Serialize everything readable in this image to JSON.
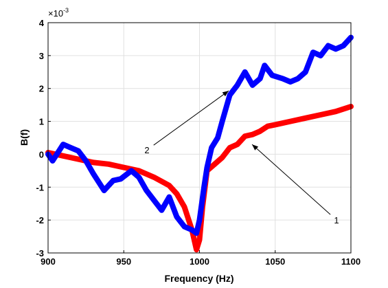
{
  "chart_data": {
    "type": "line",
    "xlabel": "Frequency (Hz)",
    "ylabel": "B(f)",
    "y_exponent": {
      "base": "×10",
      "power": "-3"
    },
    "xlim": [
      900,
      1100
    ],
    "ylim": [
      -3,
      4
    ],
    "xticks": [
      900,
      950,
      1000,
      1050,
      1100
    ],
    "yticks": [
      -3,
      -2,
      -1,
      0,
      1,
      2,
      3,
      4
    ],
    "grid": true,
    "series": [
      {
        "color": "#ff0000",
        "x": [
          900,
          910,
          920,
          930,
          940,
          950,
          960,
          970,
          980,
          985,
          990,
          995,
          998,
          1000,
          1002,
          1005,
          1010,
          1015,
          1020,
          1025,
          1030,
          1035,
          1040,
          1045,
          1050,
          1060,
          1070,
          1080,
          1090,
          1100
        ],
        "values": [
          0.05,
          -0.05,
          -0.15,
          -0.25,
          -0.3,
          -0.4,
          -0.5,
          -0.7,
          -0.95,
          -1.2,
          -1.6,
          -2.3,
          -2.9,
          -2.6,
          -1.6,
          -0.5,
          -0.3,
          -0.1,
          0.2,
          0.3,
          0.55,
          0.6,
          0.7,
          0.85,
          0.9,
          1.0,
          1.1,
          1.2,
          1.3,
          1.45
        ]
      },
      {
        "color": "#0000ff",
        "x": [
          900,
          903,
          910,
          915,
          920,
          925,
          930,
          937,
          943,
          948,
          955,
          960,
          965,
          970,
          975,
          980,
          985,
          990,
          995,
          998,
          1000,
          1003,
          1005,
          1008,
          1012,
          1015,
          1020,
          1025,
          1030,
          1035,
          1040,
          1043,
          1048,
          1055,
          1060,
          1065,
          1070,
          1075,
          1080,
          1085,
          1090,
          1095,
          1100
        ],
        "values": [
          0.0,
          -0.2,
          0.3,
          0.2,
          0.1,
          -0.2,
          -0.6,
          -1.1,
          -0.8,
          -0.75,
          -0.5,
          -0.7,
          -1.1,
          -1.4,
          -1.7,
          -1.3,
          -1.9,
          -2.2,
          -2.3,
          -2.4,
          -2.0,
          -1.0,
          -0.4,
          0.2,
          0.5,
          1.0,
          1.8,
          2.1,
          2.5,
          2.1,
          2.3,
          2.7,
          2.4,
          2.3,
          2.2,
          2.3,
          2.5,
          3.1,
          3.0,
          3.3,
          3.2,
          3.3,
          3.55
        ]
      }
    ],
    "annotations": [
      {
        "text": "1",
        "xy": [
          1034.7,
          0.3
        ],
        "xytext": [
          1090.5,
          -2.0
        ]
      },
      {
        "text": "2",
        "xy": [
          1019.3,
          1.93
        ],
        "xytext": [
          965.3,
          0.13
        ]
      }
    ]
  }
}
